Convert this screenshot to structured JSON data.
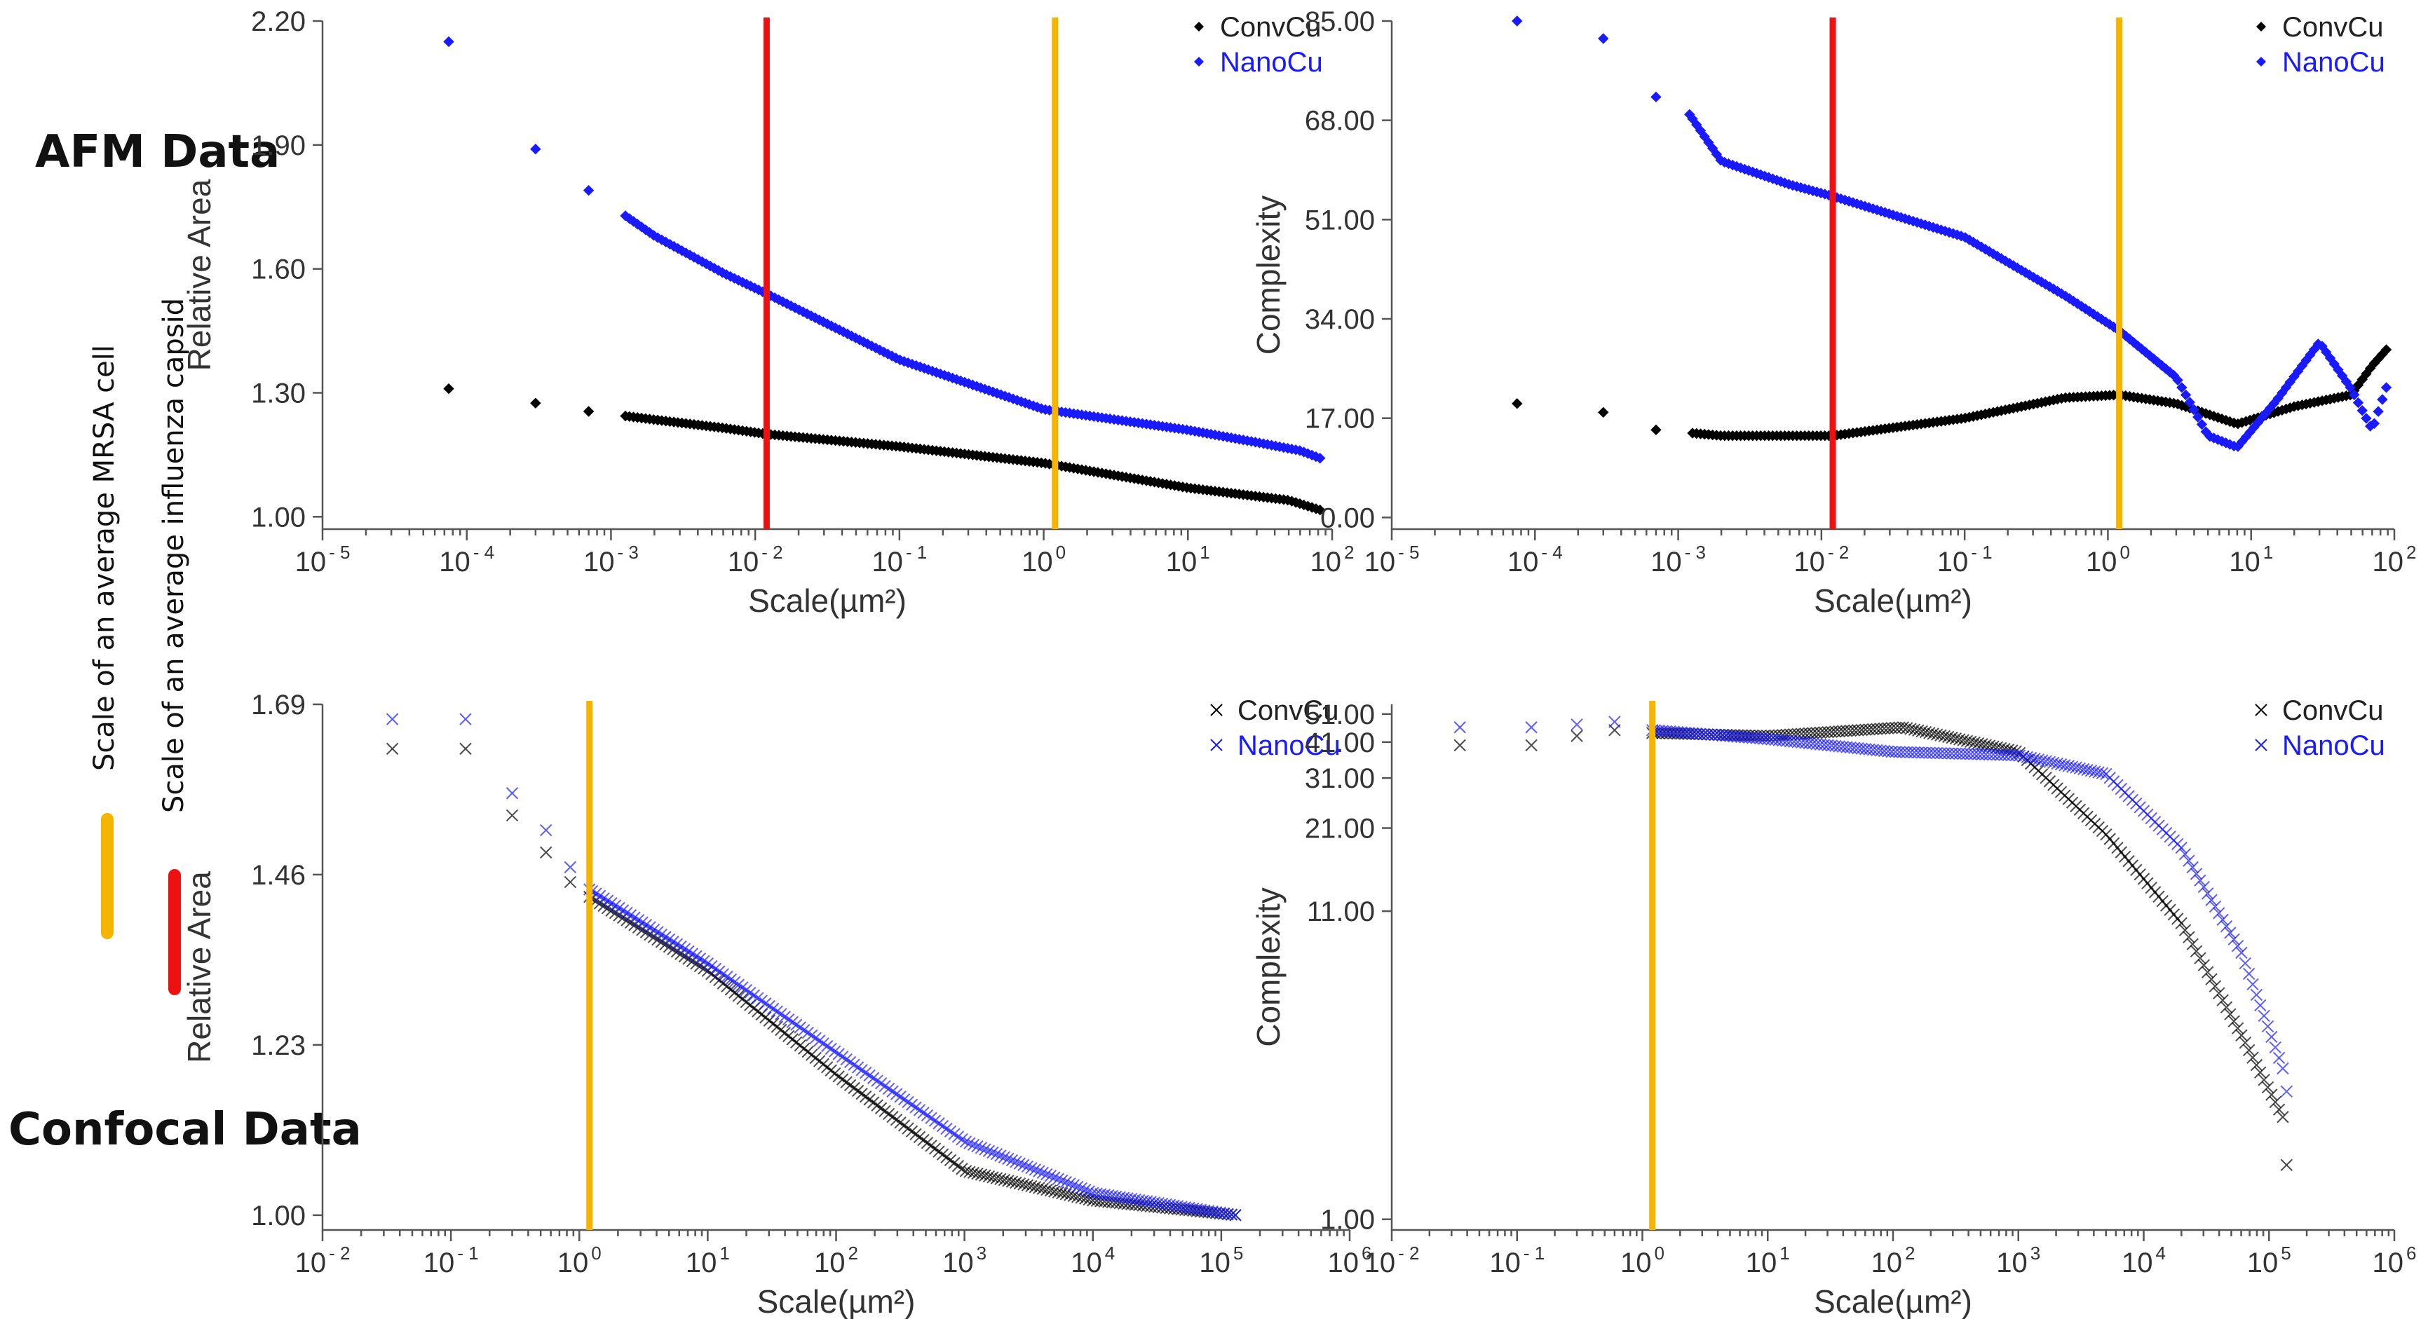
{
  "labels": {
    "afm": "AFM Data",
    "confocal": "Confocal Data",
    "mrsa": "Scale of an average MRSA cell",
    "influenza": "Scale of an average influenza capsid"
  },
  "colors": {
    "conv": "#000000",
    "nano": "#1a1aff",
    "mrsa": "#f5b400",
    "influenza": "#ee1111"
  },
  "chart_data": [
    {
      "id": "afm-relative-area",
      "type": "scatter",
      "title": "",
      "xlabel": "Scale(µm²)",
      "ylabel": "Relative Area",
      "xscale": "log",
      "xlim_exp": [
        -5,
        2
      ],
      "x_tick_exps": [
        -5,
        -4,
        -3,
        -2,
        -1,
        0,
        1,
        2
      ],
      "ylim": [
        0.97,
        2.2
      ],
      "y_ticks": [
        "2.20",
        "1.90",
        "1.60",
        "1.30",
        "1.00"
      ],
      "marker": "diamond",
      "legend": "top-right",
      "vlines": [
        {
          "x": 0.012,
          "key": "influenza"
        },
        {
          "x": 1.2,
          "key": "mrsa"
        }
      ],
      "series": [
        {
          "name": "ConvCu",
          "key": "conv",
          "points": [
            [
              7.5e-05,
              1.31
            ],
            [
              0.0003,
              1.275
            ],
            [
              0.0007,
              1.255
            ],
            [
              0.002,
              1.235
            ],
            [
              0.006,
              1.215
            ],
            [
              0.012,
              1.2
            ],
            [
              0.1,
              1.17
            ],
            [
              1,
              1.13
            ],
            [
              10,
              1.07
            ],
            [
              50,
              1.04
            ],
            [
              85,
              1.015
            ]
          ]
        },
        {
          "name": "NanoCu",
          "key": "nano",
          "points": [
            [
              7.5e-05,
              2.15
            ],
            [
              0.0003,
              1.89
            ],
            [
              0.0007,
              1.79
            ],
            [
              0.002,
              1.68
            ],
            [
              0.006,
              1.59
            ],
            [
              0.012,
              1.54
            ],
            [
              0.1,
              1.38
            ],
            [
              1,
              1.26
            ],
            [
              10,
              1.21
            ],
            [
              30,
              1.18
            ],
            [
              60,
              1.16
            ],
            [
              85,
              1.14
            ]
          ]
        }
      ]
    },
    {
      "id": "afm-complexity",
      "type": "scatter",
      "title": "",
      "xlabel": "Scale(µm²)",
      "ylabel": "Complexity",
      "xscale": "log",
      "xlim_exp": [
        -5,
        2
      ],
      "x_tick_exps": [
        -5,
        -4,
        -3,
        -2,
        -1,
        0,
        1,
        2
      ],
      "ylim": [
        -2,
        85
      ],
      "y_ticks": [
        "85.00",
        "68.00",
        "51.00",
        "34.00",
        "17.00",
        "0.00"
      ],
      "marker": "diamond",
      "legend": "top-right",
      "vlines": [
        {
          "x": 0.012,
          "key": "influenza"
        },
        {
          "x": 1.2,
          "key": "mrsa"
        }
      ],
      "series": [
        {
          "name": "ConvCu",
          "key": "conv",
          "points": [
            [
              7.5e-05,
              19.5
            ],
            [
              0.0003,
              18
            ],
            [
              0.0007,
              15
            ],
            [
              0.002,
              14
            ],
            [
              0.012,
              14
            ],
            [
              0.1,
              17
            ],
            [
              0.5,
              20.5
            ],
            [
              1.2,
              21
            ],
            [
              3,
              19.5
            ],
            [
              8,
              16
            ],
            [
              20,
              19
            ],
            [
              50,
              21
            ],
            [
              70,
              26
            ],
            [
              90,
              29
            ]
          ]
        },
        {
          "name": "NanoCu",
          "key": "nano",
          "points": [
            [
              7.5e-05,
              85
            ],
            [
              0.0003,
              82
            ],
            [
              0.0007,
              72
            ],
            [
              0.0012,
              69
            ],
            [
              0.002,
              61
            ],
            [
              0.006,
              57
            ],
            [
              0.012,
              55
            ],
            [
              0.1,
              48
            ],
            [
              0.5,
              38
            ],
            [
              1.2,
              32
            ],
            [
              3,
              24
            ],
            [
              5,
              14
            ],
            [
              8,
              12
            ],
            [
              15,
              20
            ],
            [
              30,
              30
            ],
            [
              50,
              22
            ],
            [
              70,
              15
            ],
            [
              90,
              23
            ]
          ]
        }
      ]
    },
    {
      "id": "confocal-relative-area",
      "type": "scatter",
      "title": "",
      "xlabel": "Scale(µm²)",
      "ylabel": "Relative Area",
      "xscale": "log",
      "xlim_exp": [
        -2,
        6
      ],
      "x_tick_exps": [
        -2,
        -1,
        0,
        1,
        2,
        3,
        4,
        5,
        6
      ],
      "ylim": [
        0.98,
        1.69
      ],
      "y_ticks": [
        "1.69",
        "1.46",
        "1.23",
        "1.00"
      ],
      "marker": "x",
      "legend": "top-right",
      "vlines": [
        {
          "x": 1.2,
          "key": "mrsa"
        }
      ],
      "series": [
        {
          "name": "ConvCu",
          "key": "conv",
          "points": [
            [
              0.035,
              1.63
            ],
            [
              0.13,
              1.63
            ],
            [
              0.3,
              1.54
            ],
            [
              0.55,
              1.49
            ],
            [
              0.85,
              1.45
            ],
            [
              1.2,
              1.43
            ],
            [
              10,
              1.33
            ],
            [
              100,
              1.19
            ],
            [
              1000,
              1.06
            ],
            [
              10000,
              1.02
            ],
            [
              130000,
              1.0
            ]
          ]
        },
        {
          "name": "NanoCu",
          "key": "nano",
          "points": [
            [
              0.035,
              1.67
            ],
            [
              0.13,
              1.67
            ],
            [
              0.3,
              1.57
            ],
            [
              0.55,
              1.52
            ],
            [
              0.85,
              1.47
            ],
            [
              1.2,
              1.44
            ],
            [
              10,
              1.34
            ],
            [
              100,
              1.22
            ],
            [
              1000,
              1.1
            ],
            [
              10000,
              1.03
            ],
            [
              130000,
              1.0
            ]
          ]
        }
      ]
    },
    {
      "id": "confocal-complexity",
      "type": "scatter",
      "title": "",
      "xlabel": "Scale(µm²)",
      "ylabel": "Complexity",
      "xscale": "log",
      "yscale": "log",
      "xlim_exp": [
        -2,
        6
      ],
      "x_tick_exps": [
        -2,
        -1,
        0,
        1,
        2,
        3,
        4,
        5,
        6
      ],
      "ylim": [
        0.92,
        55
      ],
      "y_ticks": [
        "51.00",
        "41.00",
        "31.00",
        "21.00",
        "11.00",
        "1.00"
      ],
      "marker": "x",
      "legend": "top-right",
      "vlines": [
        {
          "x": 1.2,
          "key": "mrsa"
        }
      ],
      "series": [
        {
          "name": "ConvCu",
          "key": "conv",
          "points": [
            [
              0.035,
              40
            ],
            [
              0.13,
              40
            ],
            [
              0.3,
              43
            ],
            [
              0.6,
              45
            ],
            [
              1.2,
              44
            ],
            [
              10,
              43
            ],
            [
              120,
              46
            ],
            [
              1000,
              38
            ],
            [
              5000,
              20
            ],
            [
              20000,
              10
            ],
            [
              60000,
              4.2
            ],
            [
              130000,
              2.2
            ],
            [
              140000,
              1.4
            ]
          ]
        },
        {
          "name": "NanoCu",
          "key": "nano",
          "points": [
            [
              0.035,
              46
            ],
            [
              0.13,
              46
            ],
            [
              0.3,
              47
            ],
            [
              0.6,
              48
            ],
            [
              1.2,
              45
            ],
            [
              10,
              42
            ],
            [
              100,
              38
            ],
            [
              1000,
              37
            ],
            [
              5000,
              32
            ],
            [
              20000,
              18
            ],
            [
              60000,
              8
            ],
            [
              130000,
              3.2
            ],
            [
              140000,
              2.6
            ]
          ]
        }
      ]
    }
  ]
}
